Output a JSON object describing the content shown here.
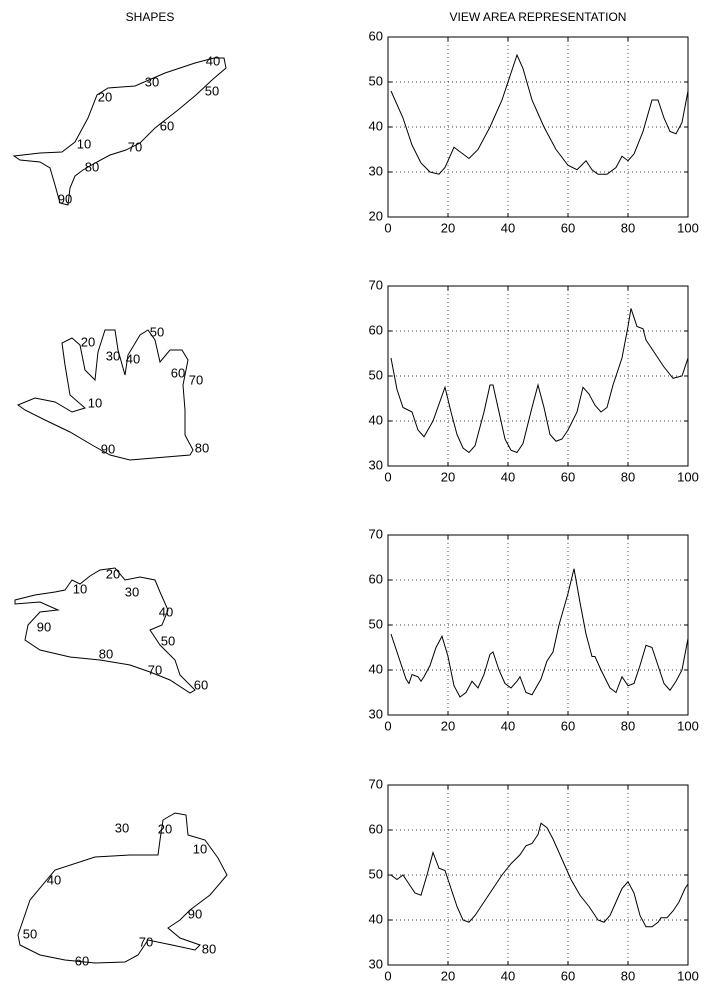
{
  "headers": {
    "left": "SHAPES",
    "right": "VIEW AREA REPRESENTATION"
  },
  "shapes": [
    {
      "labels": [
        10,
        20,
        30,
        40,
        50,
        60,
        70,
        80,
        90
      ]
    },
    {
      "labels": [
        10,
        20,
        30,
        40,
        50,
        60,
        70,
        80,
        90
      ]
    },
    {
      "labels": [
        10,
        20,
        30,
        40,
        50,
        60,
        70,
        80,
        90
      ]
    },
    {
      "labels": [
        10,
        20,
        30,
        40,
        50,
        60,
        70,
        80,
        90
      ]
    }
  ],
  "chart_data": [
    {
      "type": "line",
      "color": "#000000",
      "grid": true,
      "x": [
        1,
        5,
        8,
        11,
        14,
        17,
        19,
        22,
        25,
        27,
        30,
        34,
        38,
        41,
        43,
        45,
        48,
        52,
        56,
        60,
        63,
        66,
        68,
        70,
        73,
        76,
        78,
        80,
        82,
        85,
        88,
        90,
        92,
        94,
        96,
        98,
        100
      ],
      "values": [
        48,
        42,
        36,
        32,
        30,
        29.5,
        31,
        35.5,
        34,
        33,
        35,
        40,
        46,
        52,
        56,
        53,
        46,
        40,
        35,
        31.5,
        30.5,
        32.5,
        30.5,
        29.5,
        29.5,
        31,
        33.5,
        32.5,
        34,
        39,
        46,
        46,
        42,
        39,
        38.5,
        41,
        48
      ],
      "xlim": [
        0,
        100
      ],
      "xticks": [
        0,
        20,
        40,
        60,
        80,
        100
      ],
      "ylim": [
        20,
        60
      ],
      "yticks": [
        20,
        30,
        40,
        50,
        60
      ]
    },
    {
      "type": "line",
      "color": "#000000",
      "grid": true,
      "x": [
        1,
        3,
        5,
        8,
        10,
        12,
        15,
        19,
        21,
        23,
        25,
        27,
        29,
        32,
        34,
        35,
        37,
        39,
        41,
        43,
        45,
        48,
        50,
        52,
        54,
        56,
        58,
        60,
        63,
        65,
        67,
        69,
        71,
        73,
        75,
        78,
        80,
        81,
        83,
        85,
        86,
        89,
        92,
        95,
        98,
        100
      ],
      "values": [
        54,
        47,
        43,
        42,
        38,
        36.5,
        40,
        47.5,
        42,
        37,
        34,
        33,
        34.5,
        42,
        48,
        48,
        42,
        36,
        33.5,
        33,
        35,
        43,
        48,
        43,
        37,
        35.5,
        36,
        38,
        42,
        47.5,
        46,
        43.5,
        42,
        43,
        48,
        54,
        61,
        65,
        61,
        60.5,
        58,
        55,
        52,
        49.5,
        50,
        54
      ],
      "xlim": [
        0,
        100
      ],
      "xticks": [
        0,
        20,
        40,
        60,
        80,
        100
      ],
      "ylim": [
        30,
        70
      ],
      "yticks": [
        30,
        40,
        50,
        60,
        70
      ]
    },
    {
      "type": "line",
      "color": "#000000",
      "grid": true,
      "x": [
        1,
        4,
        6,
        7,
        8,
        10,
        11,
        12,
        14,
        16,
        18,
        20,
        22,
        24,
        26,
        28,
        30,
        32,
        34,
        35,
        37,
        39,
        41,
        43,
        44,
        46,
        48,
        51,
        53,
        55,
        57,
        60,
        62,
        64,
        66,
        68,
        69,
        71,
        74,
        76,
        78,
        80,
        82,
        84,
        86,
        88,
        90,
        92,
        94,
        96,
        98,
        100
      ],
      "values": [
        48,
        42,
        38,
        37,
        39,
        38.5,
        37.5,
        38.5,
        41,
        45,
        47.5,
        43,
        36.5,
        34,
        35,
        37.5,
        36,
        39,
        43.5,
        44,
        40,
        37,
        36,
        37.5,
        38.5,
        35,
        34.5,
        38,
        42,
        44,
        50,
        57,
        62.5,
        55,
        48,
        43,
        43,
        40,
        36,
        35,
        38.5,
        36.5,
        37,
        41,
        45.5,
        45,
        41,
        37,
        35.5,
        37.5,
        40,
        47
      ],
      "xlim": [
        0,
        100
      ],
      "xticks": [
        0,
        20,
        40,
        60,
        80,
        100
      ],
      "ylim": [
        30,
        70
      ],
      "yticks": [
        30,
        40,
        50,
        60,
        70
      ]
    },
    {
      "type": "line",
      "color": "#000000",
      "grid": true,
      "x": [
        1,
        3,
        5,
        7,
        9,
        11,
        13,
        15,
        17,
        19,
        21,
        23,
        25,
        27,
        29,
        31,
        33,
        35,
        38,
        41,
        44,
        46,
        48,
        50,
        51,
        53,
        55,
        58,
        61,
        64,
        67,
        70,
        72,
        74,
        76,
        78,
        80,
        82,
        84,
        86,
        88,
        90,
        91,
        93,
        95,
        97,
        99,
        100
      ],
      "values": [
        50,
        49,
        50,
        48,
        46,
        45.5,
        50,
        55,
        51.5,
        51,
        47,
        43,
        40,
        39.5,
        41,
        43,
        45,
        47,
        50,
        52.5,
        54.5,
        56.5,
        57,
        59,
        61.5,
        60.5,
        58,
        53.5,
        49,
        45.5,
        43,
        40,
        39.5,
        41,
        44,
        47,
        48.5,
        46,
        41,
        38.5,
        38.5,
        39.5,
        40.5,
        40.5,
        42,
        44,
        47,
        48
      ],
      "xlim": [
        0,
        100
      ],
      "xticks": [
        0,
        20,
        40,
        60,
        80,
        100
      ],
      "ylim": [
        30,
        70
      ],
      "yticks": [
        30,
        40,
        50,
        60,
        70
      ]
    }
  ]
}
